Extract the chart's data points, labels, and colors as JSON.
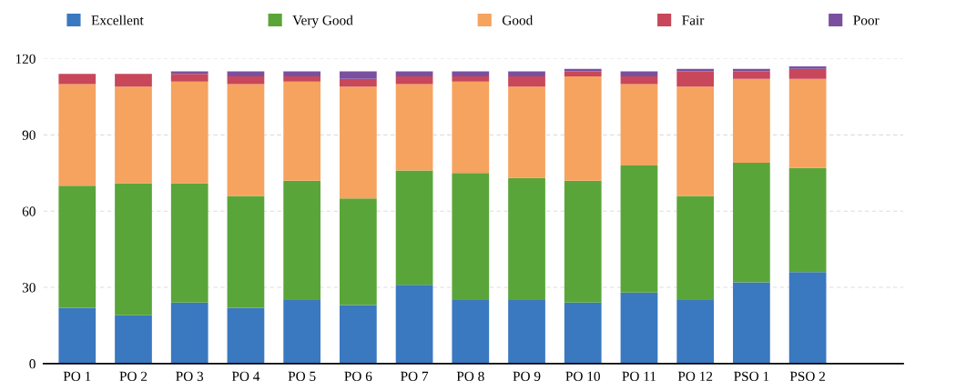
{
  "chart_data": {
    "type": "bar",
    "stacked": true,
    "categories": [
      "PO 1",
      "PO 2",
      "PO 3",
      "PO 4",
      "PO 5",
      "PO 6",
      "PO 7",
      "PO 8",
      "PO 9",
      "PO 10",
      "PO 11",
      "PO 12",
      "PSO 1",
      "PSO 2"
    ],
    "series": [
      {
        "name": "Excellent",
        "color": "#3a78c0",
        "values": [
          22,
          19,
          24,
          22,
          25,
          23,
          31,
          25,
          25,
          24,
          28,
          25,
          32,
          36
        ]
      },
      {
        "name": "Very Good",
        "color": "#5aa53a",
        "values": [
          48,
          52,
          47,
          44,
          47,
          42,
          45,
          50,
          48,
          48,
          50,
          41,
          47,
          41
        ]
      },
      {
        "name": "Good",
        "color": "#f5a35f",
        "values": [
          40,
          38,
          40,
          44,
          39,
          44,
          34,
          36,
          36,
          41,
          32,
          43,
          33,
          35
        ]
      },
      {
        "name": "Fair",
        "color": "#c8475a",
        "values": [
          4,
          5,
          3,
          3,
          2,
          3,
          3,
          2,
          4,
          2,
          3,
          6,
          3,
          4
        ]
      },
      {
        "name": "Poor",
        "color": "#7b4fa0",
        "values": [
          0,
          0,
          1,
          2,
          2,
          3,
          2,
          2,
          2,
          1,
          2,
          1,
          1,
          1
        ]
      }
    ],
    "ylim": [
      0,
      120
    ],
    "yticks": [
      0,
      30,
      60,
      90,
      120
    ],
    "grid": "y",
    "legend": "top"
  }
}
